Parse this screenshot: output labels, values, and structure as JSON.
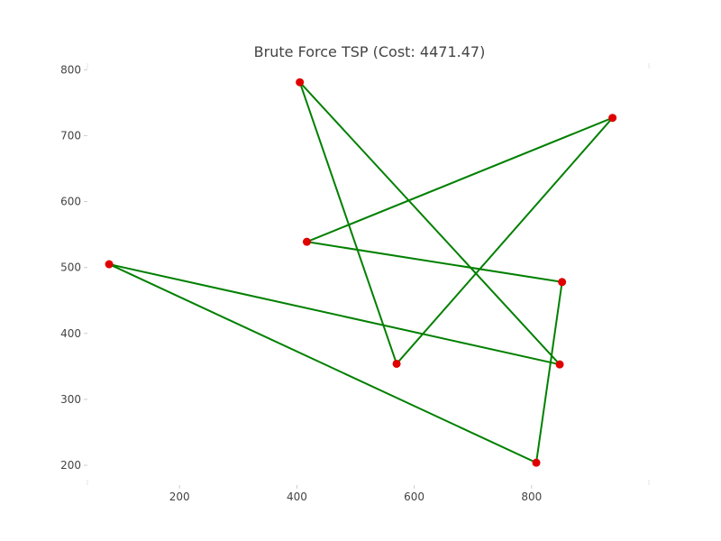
{
  "chart_data": {
    "type": "line",
    "title": "Brute Force TSP (Cost: 4471.47)",
    "xlabel": "",
    "ylabel": "",
    "xlim": [
      43,
      1000
    ],
    "ylim": [
      170,
      810
    ],
    "xticks": [
      200,
      400,
      600,
      800
    ],
    "yticks": [
      200,
      300,
      400,
      500,
      600,
      700,
      800
    ],
    "grid": false,
    "line_color": "#008000",
    "point_color": "#e00000",
    "series": [
      {
        "points": [
          {
            "x": 80,
            "y": 505
          },
          {
            "x": 848,
            "y": 353
          },
          {
            "x": 405,
            "y": 781
          },
          {
            "x": 570,
            "y": 354
          },
          {
            "x": 938,
            "y": 727
          },
          {
            "x": 417,
            "y": 539
          },
          {
            "x": 852,
            "y": 478
          },
          {
            "x": 808,
            "y": 204
          },
          {
            "x": 80,
            "y": 505
          }
        ]
      }
    ]
  }
}
